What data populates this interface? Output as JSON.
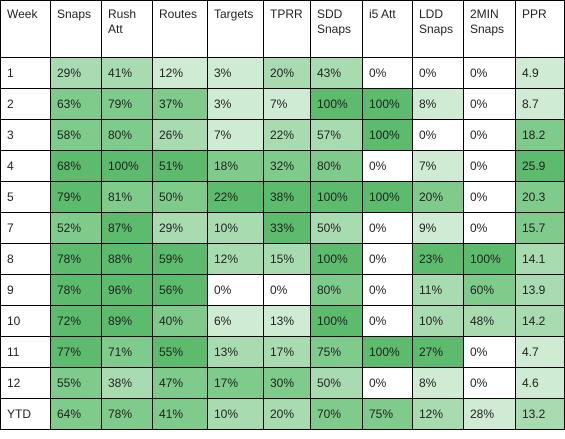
{
  "table": {
    "headers": [
      "Week",
      "Snaps",
      "Rush\nAtt",
      "Routes",
      "Targets",
      "TPRR",
      "SDD\nSnaps",
      "i5 Att",
      "LDD\nSnaps",
      "2MIN\nSnaps",
      "PPR"
    ],
    "rows": [
      [
        "1",
        "29%",
        "41%",
        "12%",
        "3%",
        "20%",
        "43%",
        "0%",
        "0%",
        "0%",
        "4.9"
      ],
      [
        "2",
        "63%",
        "79%",
        "37%",
        "3%",
        "7%",
        "100%",
        "100%",
        "8%",
        "0%",
        "8.7"
      ],
      [
        "3",
        "58%",
        "80%",
        "26%",
        "7%",
        "22%",
        "57%",
        "100%",
        "0%",
        "0%",
        "18.2"
      ],
      [
        "4",
        "68%",
        "100%",
        "51%",
        "18%",
        "32%",
        "80%",
        "0%",
        "7%",
        "0%",
        "25.9"
      ],
      [
        "5",
        "79%",
        "81%",
        "50%",
        "22%",
        "38%",
        "100%",
        "100%",
        "20%",
        "0%",
        "20.3"
      ],
      [
        "7",
        "52%",
        "87%",
        "29%",
        "10%",
        "33%",
        "50%",
        "0%",
        "9%",
        "0%",
        "15.7"
      ],
      [
        "8",
        "78%",
        "88%",
        "59%",
        "12%",
        "15%",
        "100%",
        "0%",
        "23%",
        "100%",
        "14.1"
      ],
      [
        "9",
        "78%",
        "96%",
        "56%",
        "0%",
        "0%",
        "80%",
        "0%",
        "11%",
        "60%",
        "13.9"
      ],
      [
        "10",
        "72%",
        "89%",
        "40%",
        "6%",
        "13%",
        "100%",
        "0%",
        "10%",
        "48%",
        "14.2"
      ],
      [
        "11",
        "77%",
        "71%",
        "55%",
        "13%",
        "17%",
        "75%",
        "100%",
        "27%",
        "0%",
        "4.7"
      ],
      [
        "12",
        "55%",
        "38%",
        "47%",
        "17%",
        "30%",
        "50%",
        "0%",
        "8%",
        "0%",
        "4.6"
      ]
    ],
    "ytd": [
      "YTD",
      "64%",
      "78%",
      "41%",
      "10%",
      "20%",
      "70%",
      "75%",
      "12%",
      "28%",
      "13.2"
    ],
    "colors": {
      "white": "#ffffff",
      "lightest": "#e8f5ea",
      "light": "#cfebd4",
      "mid": "#a9dbb1",
      "strong": "#7ecb8b",
      "deep": "#5cbb6c",
      "border": "#000000",
      "text": "#222222"
    }
  }
}
